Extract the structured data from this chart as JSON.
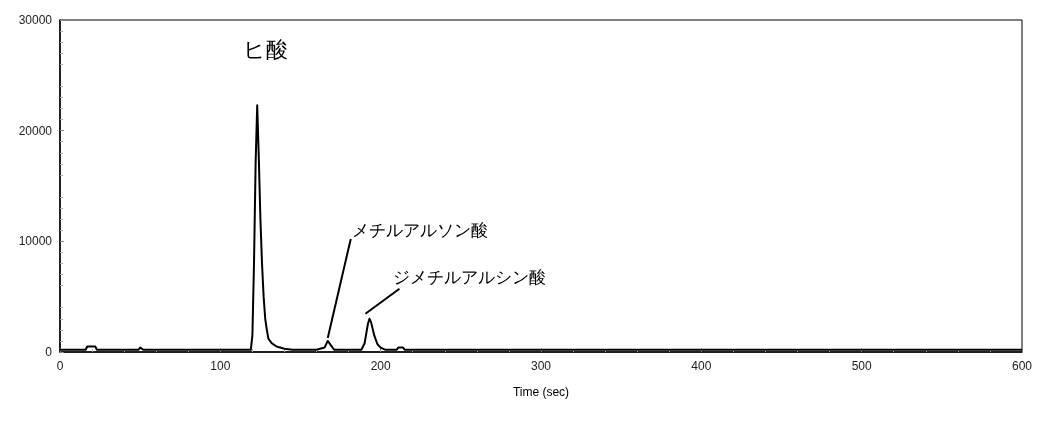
{
  "chart_data": {
    "type": "line",
    "xlabel": "Time (sec)",
    "x": [
      0,
      16,
      17,
      22,
      23,
      49,
      50,
      52,
      119,
      120,
      121,
      122,
      123,
      124,
      125,
      126,
      127,
      128,
      129,
      130,
      132,
      135,
      140,
      145,
      160,
      165,
      167,
      169,
      171,
      188,
      190,
      192,
      193,
      194,
      196,
      198,
      200,
      203,
      210,
      211,
      214,
      215,
      600
    ],
    "series": [
      {
        "color": "#000000",
        "values": [
          200,
          200,
          500,
          500,
          200,
          200,
          400,
          200,
          200,
          1500,
          8000,
          17000,
          22300,
          17500,
          12000,
          8000,
          5000,
          3000,
          2000,
          1200,
          800,
          500,
          300,
          200,
          200,
          400,
          1000,
          600,
          200,
          200,
          800,
          2500,
          3000,
          2700,
          1500,
          700,
          400,
          200,
          200,
          400,
          400,
          200,
          200
        ]
      }
    ],
    "xlim": [
      0,
      600
    ],
    "xticks": [
      0,
      100,
      200,
      300,
      400,
      500,
      600
    ],
    "ylim": [
      0,
      30000
    ],
    "yticks": [
      0,
      10000,
      20000,
      30000
    ],
    "grid": false,
    "marker": "none",
    "line_style": "solid",
    "annotations": [
      {
        "text": "ヒ酸",
        "x": 123,
        "y": 22300
      },
      {
        "text": "メチルアルソン酸",
        "x": 167,
        "y": 1000
      },
      {
        "text": "ジメチルアルシン酸",
        "x": 193,
        "y": 3000
      }
    ]
  }
}
